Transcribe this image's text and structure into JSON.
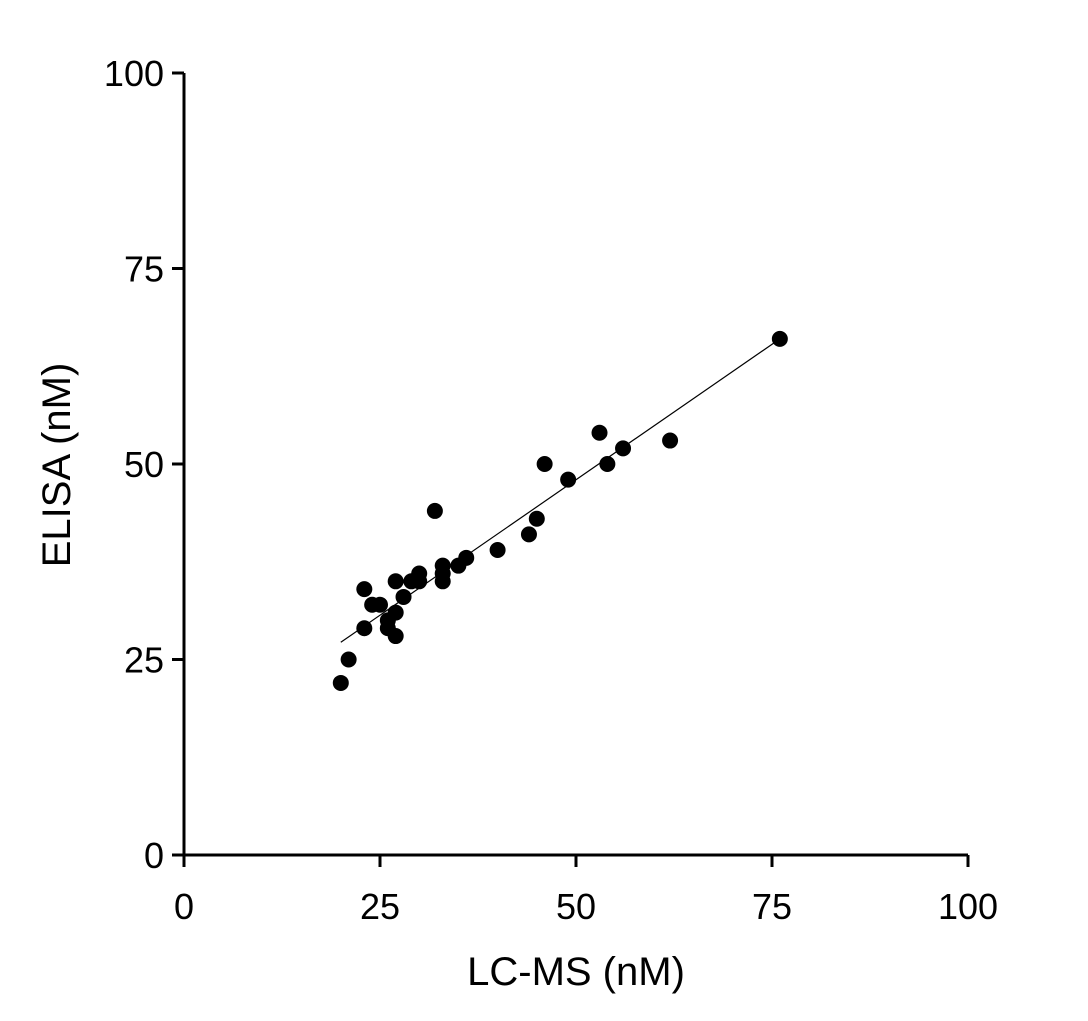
{
  "chart_data": {
    "type": "scatter",
    "title": "",
    "xlabel": "LC-MS (nM)",
    "ylabel": "ELISA (nM)",
    "xlim": [
      0,
      100
    ],
    "ylim": [
      0,
      100
    ],
    "xticks": [
      "0",
      "25",
      "50",
      "75",
      "100"
    ],
    "yticks": [
      "0",
      "25",
      "50",
      "75",
      "100"
    ],
    "grid": false,
    "legend": "none",
    "marker_color": "#000000",
    "series": [
      {
        "points": [
          [
            20,
            22
          ],
          [
            21,
            25
          ],
          [
            23,
            29
          ],
          [
            23,
            34
          ],
          [
            24,
            32
          ],
          [
            25,
            32
          ],
          [
            26,
            30
          ],
          [
            26,
            29
          ],
          [
            27,
            28
          ],
          [
            27,
            31
          ],
          [
            27,
            35
          ],
          [
            28,
            33
          ],
          [
            29,
            35
          ],
          [
            30,
            35
          ],
          [
            30,
            36
          ],
          [
            32,
            44
          ],
          [
            33,
            35
          ],
          [
            33,
            36
          ],
          [
            33,
            37
          ],
          [
            35,
            37
          ],
          [
            36,
            38
          ],
          [
            40,
            39
          ],
          [
            44,
            41
          ],
          [
            45,
            43
          ],
          [
            46,
            50
          ],
          [
            49,
            48
          ],
          [
            53,
            54
          ],
          [
            54,
            50
          ],
          [
            56,
            52
          ],
          [
            62,
            53
          ],
          [
            76,
            66
          ]
        ]
      }
    ],
    "fit_line": {
      "x": [
        20,
        76
      ],
      "y": [
        27.2,
        66
      ]
    }
  }
}
